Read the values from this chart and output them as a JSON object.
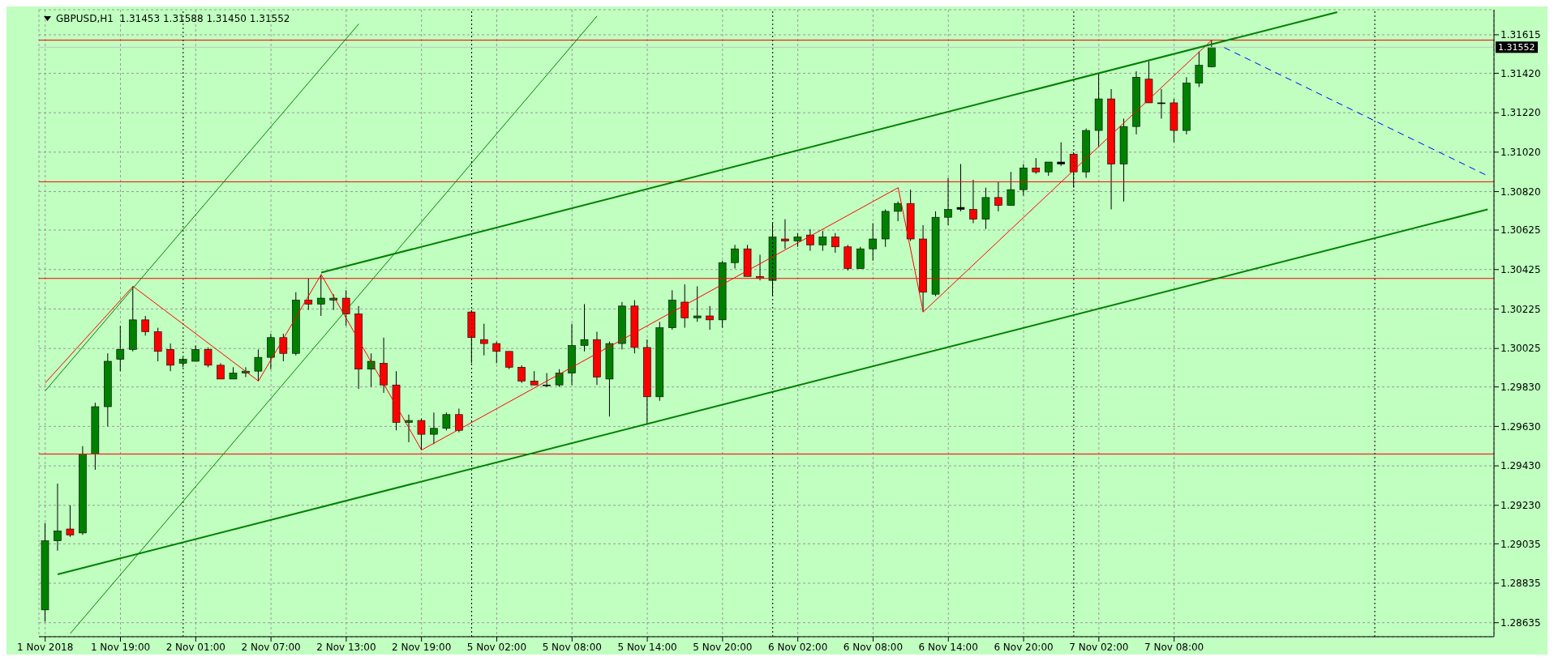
{
  "chart_data": {
    "type": "candlestick",
    "title": "GBPUSD,H1  1.31453 1.31588 1.31450 1.31552",
    "categories": [
      "1 Nov 2018",
      null,
      null,
      null,
      null,
      null,
      "1 Nov 19:00",
      null,
      null,
      null,
      null,
      null,
      "2 Nov 01:00",
      null,
      null,
      null,
      null,
      null,
      "2 Nov 07:00",
      null,
      null,
      null,
      null,
      null,
      "2 Nov 13:00",
      null,
      null,
      null,
      null,
      null,
      "2 Nov 19:00",
      null,
      null,
      null,
      null,
      null,
      "5 Nov 02:00",
      null,
      null,
      null,
      null,
      null,
      "5 Nov 08:00",
      null,
      null,
      null,
      null,
      null,
      "5 Nov 14:00",
      null,
      null,
      null,
      null,
      null,
      "5 Nov 20:00",
      null,
      null,
      null,
      null,
      null,
      "6 Nov 02:00",
      null,
      null,
      null,
      null,
      null,
      "6 Nov 08:00",
      null,
      null,
      null,
      null,
      null,
      "6 Nov 14:00",
      null,
      null,
      null,
      null,
      null,
      "6 Nov 20:00",
      null,
      null,
      null,
      null,
      null,
      "7 Nov 02:00",
      null,
      null,
      null,
      null,
      null,
      "7 Nov 08:00",
      null,
      null,
      null,
      null,
      null,
      null,
      null,
      null,
      null,
      null,
      null,
      null,
      null,
      null,
      null,
      null,
      null,
      null,
      null,
      null,
      null,
      null,
      null,
      null,
      null
    ],
    "ohlc": [
      [
        1.287,
        1.2914,
        1.2864,
        1.2905
      ],
      [
        1.2905,
        1.2934,
        1.29,
        1.291
      ],
      [
        1.2911,
        1.2923,
        1.2907,
        1.2908
      ],
      [
        1.2909,
        1.2953,
        1.2908,
        1.2949
      ],
      [
        1.2949,
        1.2975,
        1.2941,
        1.2973
      ],
      [
        1.2973,
        1.3,
        1.2963,
        1.2996
      ],
      [
        1.2997,
        1.3014,
        1.2991,
        1.3002
      ],
      [
        1.3002,
        1.3034,
        1.3001,
        1.3017
      ],
      [
        1.3017,
        1.3019,
        1.3009,
        1.3011
      ],
      [
        1.3011,
        1.3013,
        1.2996,
        1.3001
      ],
      [
        1.3002,
        1.3005,
        1.2991,
        1.2994
      ],
      [
        1.2995,
        1.2998,
        1.2993,
        1.2997
      ],
      [
        1.2996,
        1.3004,
        1.2996,
        1.3002
      ],
      [
        1.3002,
        1.3003,
        1.2993,
        1.2994
      ],
      [
        1.2994,
        1.2995,
        1.2987,
        1.2987
      ],
      [
        1.2987,
        1.2993,
        1.2987,
        1.299
      ],
      [
        1.299,
        1.2993,
        1.2988,
        1.2991
      ],
      [
        1.2991,
        1.3002,
        1.2986,
        1.2998
      ],
      [
        1.2998,
        1.301,
        1.2992,
        1.3008
      ],
      [
        1.3008,
        1.301,
        1.2996,
        1.3
      ],
      [
        1.3,
        1.3031,
        1.2999,
        1.3027
      ],
      [
        1.3027,
        1.3038,
        1.3022,
        1.3025
      ],
      [
        1.3025,
        1.304,
        1.3019,
        1.3028
      ],
      [
        1.3027,
        1.303,
        1.3022,
        1.3028
      ],
      [
        1.3028,
        1.3032,
        1.3014,
        1.302
      ],
      [
        1.302,
        1.3024,
        1.2982,
        1.2992
      ],
      [
        1.2992,
        1.3,
        1.2983,
        1.2996
      ],
      [
        1.2995,
        1.3008,
        1.298,
        1.2984
      ],
      [
        1.2984,
        1.2991,
        1.2961,
        1.2965
      ],
      [
        1.2965,
        1.2969,
        1.2955,
        1.2966
      ],
      [
        1.2966,
        1.2967,
        1.2951,
        1.2959
      ],
      [
        1.2959,
        1.297,
        1.2954,
        1.2962
      ],
      [
        1.2962,
        1.297,
        1.2961,
        1.2969
      ],
      [
        1.2969,
        1.2972,
        1.296,
        1.2961
      ],
      [
        1.3021,
        1.3022,
        1.2995,
        1.3008
      ],
      [
        1.3007,
        1.3015,
        1.2999,
        1.3005
      ],
      [
        1.3005,
        1.3006,
        1.2995,
        1.3001
      ],
      [
        1.3001,
        1.3001,
        1.2992,
        1.2993
      ],
      [
        1.2993,
        1.2994,
        1.2985,
        1.2986
      ],
      [
        1.2986,
        1.2991,
        1.2984,
        1.2984
      ],
      [
        1.2984,
        1.299,
        1.2983,
        1.2984
      ],
      [
        1.2984,
        1.2992,
        1.2983,
        1.299
      ],
      [
        1.299,
        1.3015,
        1.2984,
        1.3004
      ],
      [
        1.3004,
        1.3025,
        1.3001,
        1.3007
      ],
      [
        1.3007,
        1.3011,
        1.2984,
        1.2988
      ],
      [
        1.2987,
        1.3006,
        1.2968,
        1.3005
      ],
      [
        1.3005,
        1.3026,
        1.3002,
        1.3024
      ],
      [
        1.3024,
        1.3027,
        1.3,
        1.3003
      ],
      [
        1.3003,
        1.3007,
        1.2964,
        1.2978
      ],
      [
        1.2978,
        1.3016,
        1.2976,
        1.3013
      ],
      [
        1.3013,
        1.3032,
        1.3012,
        1.3027
      ],
      [
        1.3026,
        1.3035,
        1.3013,
        1.3018
      ],
      [
        1.3018,
        1.3034,
        1.3016,
        1.3019
      ],
      [
        1.3019,
        1.3024,
        1.3012,
        1.3017
      ],
      [
        1.3017,
        1.3047,
        1.3013,
        1.3046
      ],
      [
        1.3046,
        1.3055,
        1.3043,
        1.3053
      ],
      [
        1.3053,
        1.3055,
        1.3039,
        1.3039
      ],
      [
        1.3039,
        1.305,
        1.3037,
        1.3038
      ],
      [
        1.3037,
        1.3066,
        1.3029,
        1.3059
      ],
      [
        1.3058,
        1.3068,
        1.3053,
        1.3057
      ],
      [
        1.3057,
        1.3061,
        1.3054,
        1.3059
      ],
      [
        1.306,
        1.3063,
        1.3052,
        1.3055
      ],
      [
        1.3055,
        1.3062,
        1.3052,
        1.3059
      ],
      [
        1.3059,
        1.3061,
        1.3051,
        1.3054
      ],
      [
        1.3054,
        1.3055,
        1.3042,
        1.3043
      ],
      [
        1.3043,
        1.3054,
        1.3043,
        1.3053
      ],
      [
        1.3053,
        1.3066,
        1.3047,
        1.3058
      ],
      [
        1.3058,
        1.3073,
        1.3054,
        1.3072
      ],
      [
        1.3072,
        1.3077,
        1.3067,
        1.3076
      ],
      [
        1.3076,
        1.3083,
        1.3057,
        1.3058
      ],
      [
        1.3058,
        1.3065,
        1.3021,
        1.3031
      ],
      [
        1.303,
        1.3072,
        1.3029,
        1.3069
      ],
      [
        1.3069,
        1.3089,
        1.3065,
        1.3073
      ],
      [
        1.3073,
        1.3096,
        1.3072,
        1.3074
      ],
      [
        1.3073,
        1.3088,
        1.3066,
        1.3068
      ],
      [
        1.3068,
        1.3084,
        1.3063,
        1.3079
      ],
      [
        1.3079,
        1.3087,
        1.3072,
        1.3075
      ],
      [
        1.3075,
        1.3092,
        1.3075,
        1.3083
      ],
      [
        1.3083,
        1.3096,
        1.308,
        1.3094
      ],
      [
        1.3094,
        1.3099,
        1.3091,
        1.3092
      ],
      [
        1.3092,
        1.3097,
        1.309,
        1.3097
      ],
      [
        1.3096,
        1.3107,
        1.3095,
        1.3097
      ],
      [
        1.3101,
        1.3102,
        1.3084,
        1.3092
      ],
      [
        1.3092,
        1.3114,
        1.3089,
        1.3113
      ],
      [
        1.3113,
        1.3142,
        1.3105,
        1.3129
      ],
      [
        1.3129,
        1.3134,
        1.3073,
        1.3096
      ],
      [
        1.3096,
        1.3119,
        1.3077,
        1.3115
      ],
      [
        1.3115,
        1.3143,
        1.3111,
        1.314
      ],
      [
        1.3139,
        1.3148,
        1.3127,
        1.3127
      ],
      [
        1.3127,
        1.3134,
        1.3119,
        1.3127
      ],
      [
        1.3127,
        1.3129,
        1.3107,
        1.3113
      ],
      [
        1.3113,
        1.314,
        1.3111,
        1.3137
      ],
      [
        1.3137,
        1.3153,
        1.3135,
        1.3146
      ],
      [
        1.31453,
        1.31588,
        1.3145,
        1.31552
      ],
      null,
      null,
      null,
      null,
      null,
      null,
      null,
      null,
      null,
      null,
      null,
      null,
      null,
      null,
      null,
      null,
      null,
      null,
      null,
      null,
      null,
      null
    ],
    "colors": [
      "#008000",
      "#008000",
      "#ff0000",
      "#008000",
      "#008000",
      "#008000",
      "#008000",
      "#008000",
      "#ff0000",
      "#ff0000",
      "#ff0000",
      "#008000",
      "#008000",
      "#ff0000",
      "#ff0000",
      "#008000",
      "#008000",
      "#008000",
      "#008000",
      "#ff0000",
      "#008000",
      "#ff0000",
      "#008000",
      "#008000",
      "#ff0000",
      "#ff0000",
      "#008000",
      "#ff0000",
      "#ff0000",
      "#008000",
      "#ff0000",
      "#008000",
      "#008000",
      "#ff0000",
      "#ff0000",
      "#ff0000",
      "#ff0000",
      "#ff0000",
      "#ff0000",
      "#ff0000",
      "#000000",
      "#008000",
      "#008000",
      "#008000",
      "#ff0000",
      "#008000",
      "#008000",
      "#ff0000",
      "#ff0000",
      "#008000",
      "#008000",
      "#ff0000",
      "#008000",
      "#ff0000",
      "#008000",
      "#008000",
      "#ff0000",
      "#ff0000",
      "#008000",
      "#ff0000",
      "#008000",
      "#ff0000",
      "#008000",
      "#ff0000",
      "#ff0000",
      "#008000",
      "#008000",
      "#008000",
      "#008000",
      "#ff0000",
      "#ff0000",
      "#008000",
      "#008000",
      "#000000",
      "#ff0000",
      "#008000",
      "#ff0000",
      "#008000",
      "#008000",
      "#ff0000",
      "#008000",
      "#000000",
      "#ff0000",
      "#008000",
      "#008000",
      "#ff0000",
      "#008000",
      "#008000",
      "#ff0000",
      "#000000",
      "#ff0000",
      "#008000",
      "#008000",
      "#008000",
      null,
      null,
      null,
      null,
      null,
      null,
      null,
      null,
      null,
      null,
      null,
      null,
      null,
      null,
      null,
      null,
      null,
      null,
      null,
      null,
      null,
      null
    ],
    "series": [
      {
        "type": "line",
        "color": "#ff0000",
        "values": [
          1.2985,
          null,
          null,
          null,
          null,
          null,
          null,
          1.3034,
          null,
          null,
          null,
          null,
          null,
          null,
          null,
          null,
          null,
          1.2986,
          null,
          null,
          null,
          null,
          1.304,
          null,
          null,
          null,
          null,
          null,
          null,
          null,
          1.2951,
          null,
          null,
          null,
          null,
          null,
          null,
          null,
          null,
          null,
          null,
          null,
          null,
          null,
          null,
          null,
          null,
          null,
          null,
          null,
          null,
          null,
          null,
          null,
          null,
          null,
          null,
          null,
          null,
          null,
          null,
          null,
          null,
          null,
          null,
          null,
          null,
          null,
          1.3084,
          null,
          1.3021,
          null,
          null,
          null,
          null,
          null,
          null,
          null,
          null,
          null,
          null,
          null,
          null,
          null,
          null,
          null,
          null,
          null,
          null,
          null,
          null,
          null,
          null,
          1.31588,
          null,
          null,
          null,
          null,
          null,
          null,
          null,
          null,
          null,
          null,
          null,
          null,
          null,
          null,
          null,
          null,
          null,
          null,
          null,
          null,
          null,
          null
        ]
      },
      {
        "type": "line",
        "color": "#008000",
        "values": [
          null,
          null,
          null,
          null,
          null,
          null,
          null,
          null,
          null,
          null,
          null,
          null,
          null,
          null,
          null,
          null,
          null,
          null,
          null,
          null,
          null,
          null,
          1.3041,
          null,
          null,
          null,
          null,
          null,
          null,
          null,
          null,
          null,
          null,
          null,
          null,
          null,
          null,
          null,
          null,
          null,
          null,
          null,
          null,
          null,
          null,
          null,
          null,
          null,
          null,
          null,
          null,
          null,
          null,
          null,
          null,
          null,
          null,
          null,
          null,
          null,
          null,
          null,
          null,
          null,
          null,
          null,
          null,
          null,
          null,
          null,
          null,
          null,
          null,
          null,
          null,
          null,
          null,
          null,
          null,
          null,
          null,
          null,
          null,
          null,
          null,
          null,
          null,
          null,
          null,
          null,
          null,
          null,
          null,
          null,
          null,
          null,
          null,
          null,
          null,
          null,
          null,
          null,
          null,
          1.3173,
          null,
          null,
          null,
          null,
          null,
          null,
          null,
          null,
          null,
          null,
          null,
          null
        ]
      },
      {
        "type": "line",
        "color": "#008000",
        "values": [
          null,
          1.2888,
          null,
          null,
          null,
          null,
          null,
          null,
          null,
          null,
          null,
          null,
          null,
          null,
          null,
          null,
          null,
          null,
          null,
          null,
          null,
          null,
          null,
          null,
          null,
          null,
          null,
          null,
          null,
          null,
          null,
          null,
          null,
          null,
          null,
          null,
          null,
          null,
          null,
          null,
          null,
          null,
          null,
          null,
          null,
          null,
          null,
          null,
          null,
          null,
          null,
          null,
          null,
          null,
          null,
          null,
          null,
          null,
          null,
          null,
          null,
          null,
          null,
          null,
          null,
          null,
          null,
          null,
          null,
          null,
          null,
          null,
          null,
          null,
          null,
          null,
          null,
          null,
          null,
          null,
          null,
          null,
          null,
          null,
          null,
          null,
          null,
          null,
          null,
          null,
          null,
          null,
          null,
          null,
          null,
          null,
          null,
          null,
          null,
          null,
          null,
          null,
          null,
          null,
          null,
          null,
          null,
          null,
          null,
          null,
          null,
          null,
          null,
          null,
          null,
          1.3073
        ]
      },
      {
        "type": "line",
        "color": "#008000",
        "values": [
          1.2981,
          null,
          null,
          null,
          null,
          null,
          null,
          null,
          null,
          null,
          null,
          null,
          null,
          null,
          null,
          null,
          null,
          null,
          null,
          null,
          null,
          null,
          null,
          null,
          null,
          1.3167,
          null,
          null,
          null,
          null,
          null,
          null,
          null,
          null,
          null,
          null,
          null,
          null,
          null,
          null,
          null,
          null,
          null,
          null,
          null,
          null,
          null,
          null,
          null,
          null,
          null,
          null,
          null,
          null,
          null,
          null,
          null,
          null,
          null,
          null,
          null,
          null,
          null,
          null,
          null,
          null,
          null,
          null,
          null,
          null,
          null,
          null,
          null,
          null,
          null,
          null,
          null,
          null,
          null,
          null,
          null,
          null,
          null,
          null,
          null,
          null,
          null,
          null,
          null,
          null,
          null,
          null,
          null,
          null,
          null,
          null,
          null,
          null,
          null,
          null,
          null,
          null,
          null,
          null,
          null,
          null,
          null,
          null,
          null,
          null,
          null,
          null,
          null,
          null,
          null,
          null
        ]
      },
      {
        "type": "line",
        "color": "#008000",
        "values": [
          null,
          null,
          1.2858,
          null,
          null,
          null,
          null,
          null,
          null,
          null,
          null,
          null,
          null,
          null,
          null,
          null,
          null,
          null,
          null,
          null,
          null,
          null,
          null,
          null,
          null,
          null,
          null,
          null,
          null,
          null,
          null,
          null,
          null,
          null,
          null,
          null,
          null,
          null,
          null,
          null,
          null,
          null,
          null,
          null,
          1.3171,
          null,
          null,
          null,
          null,
          null,
          null,
          null,
          null,
          null,
          null,
          null,
          null,
          null,
          null,
          null,
          null,
          null,
          null,
          null,
          null,
          null,
          null,
          null,
          null,
          null,
          null,
          null,
          null,
          null,
          null,
          null,
          null,
          null,
          null,
          null,
          null,
          null,
          null,
          null,
          null,
          null,
          null,
          null,
          null,
          null,
          null,
          null,
          null,
          null,
          null,
          null,
          null,
          null,
          null,
          null,
          null,
          null,
          null,
          null,
          null,
          null,
          null,
          null,
          null,
          null,
          null,
          null,
          null,
          null,
          null,
          null
        ]
      },
      {
        "type": "line",
        "color": "#0000ff",
        "line_style": "dashed",
        "values": [
          null,
          null,
          null,
          null,
          null,
          null,
          null,
          null,
          null,
          null,
          null,
          null,
          null,
          null,
          null,
          null,
          null,
          null,
          null,
          null,
          null,
          null,
          null,
          null,
          null,
          null,
          null,
          null,
          null,
          null,
          null,
          null,
          null,
          null,
          null,
          null,
          null,
          null,
          null,
          null,
          null,
          null,
          null,
          null,
          null,
          null,
          null,
          null,
          null,
          null,
          null,
          null,
          null,
          null,
          null,
          null,
          null,
          null,
          null,
          null,
          null,
          null,
          null,
          null,
          null,
          null,
          null,
          null,
          null,
          null,
          null,
          null,
          null,
          null,
          null,
          null,
          null,
          null,
          null,
          null,
          null,
          null,
          null,
          null,
          null,
          null,
          null,
          null,
          null,
          null,
          null,
          null,
          null,
          null,
          1.3155,
          null,
          null,
          null,
          null,
          null,
          null,
          null,
          null,
          null,
          null,
          null,
          null,
          null,
          null,
          null,
          null,
          null,
          null,
          null,
          null,
          1.309
        ]
      }
    ],
    "ref_lines": [
      {
        "axis": "y",
        "value": 1.31588,
        "color": "#ff0000"
      },
      {
        "axis": "y",
        "value": 1.31552,
        "label": "1.31552",
        "color": "#c0c0c0"
      },
      {
        "axis": "y",
        "value": 1.3087,
        "color": "#ff0000"
      },
      {
        "axis": "y",
        "value": 1.3038,
        "color": "#ff0000"
      },
      {
        "axis": "y",
        "value": 1.2949,
        "color": "#ff0000"
      }
    ],
    "ylim": [
      1.28564,
      1.31742
    ],
    "yticks": [
      1.31615,
      {
        "value": 1.3142,
        "label": "1.31420"
      },
      {
        "value": 1.3122,
        "label": "1.31220"
      },
      {
        "value": 1.3102,
        "label": "1.31020"
      },
      {
        "value": 1.3082,
        "label": "1.30820"
      },
      1.30625,
      1.30425,
      1.30225,
      1.30025,
      {
        "value": 1.2983,
        "label": "1.29830"
      },
      {
        "value": 1.2963,
        "label": "1.29630"
      },
      {
        "value": 1.2943,
        "label": "1.29430"
      },
      {
        "value": 1.2923,
        "label": "1.29230"
      },
      1.29035,
      1.28835,
      1.28635
    ],
    "grid": true
  }
}
